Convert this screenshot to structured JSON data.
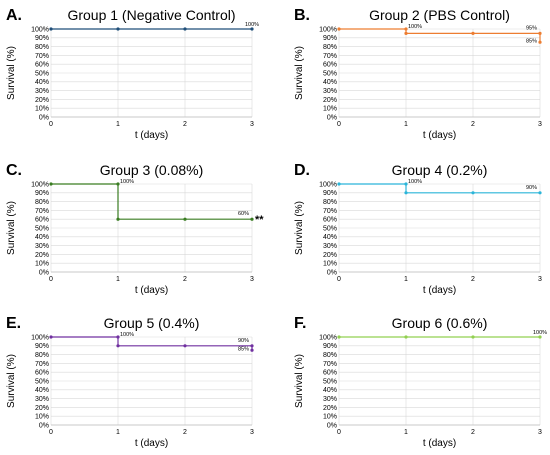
{
  "chart_data": [
    {
      "type": "line",
      "panel": "A.",
      "title": "Group 1 (Negative Control)",
      "xlabel": "t (days)",
      "ylabel": "Survival (%)",
      "xlim": [
        0,
        3
      ],
      "ylim": [
        0,
        100
      ],
      "x_ticks": [
        "0",
        "1",
        "2",
        "3"
      ],
      "y_ticks": [
        "0%",
        "10%",
        "20%",
        "30%",
        "40%",
        "50%",
        "60%",
        "70%",
        "80%",
        "90%",
        "100%"
      ],
      "color": "#1F4E79",
      "grid": true,
      "series": [
        {
          "steps": [
            [
              0,
              100
            ],
            [
              1,
              100
            ],
            [
              2,
              100
            ],
            [
              3,
              100
            ]
          ],
          "points": [
            [
              0,
              100
            ],
            [
              1,
              100
            ],
            [
              2,
              100
            ],
            [
              3,
              100
            ]
          ]
        }
      ],
      "annotations": [
        {
          "text": "100%",
          "x": 3,
          "y": 100,
          "pos": "above"
        }
      ]
    },
    {
      "type": "line",
      "panel": "B.",
      "title": "Group 2 (PBS Control)",
      "xlabel": "t (days)",
      "ylabel": "Survival (%)",
      "xlim": [
        0,
        3
      ],
      "ylim": [
        0,
        100
      ],
      "x_ticks": [
        "0",
        "1",
        "2",
        "3"
      ],
      "y_ticks": [
        "0%",
        "10%",
        "20%",
        "30%",
        "40%",
        "50%",
        "60%",
        "70%",
        "80%",
        "90%",
        "100%"
      ],
      "color": "#ED7D31",
      "grid": true,
      "series": [
        {
          "steps": [
            [
              0,
              100
            ],
            [
              1,
              100
            ],
            [
              1,
              95
            ],
            [
              3,
              95
            ],
            [
              3,
              85
            ]
          ],
          "points": [
            [
              0,
              100
            ],
            [
              1,
              100
            ],
            [
              1,
              95
            ],
            [
              2,
              95
            ],
            [
              3,
              95
            ],
            [
              3,
              85
            ]
          ]
        }
      ],
      "annotations": [
        {
          "text": "100%",
          "x": 1,
          "y": 100,
          "pos": "right"
        },
        {
          "text": "95%",
          "x": 3,
          "y": 95,
          "pos": "left-above"
        },
        {
          "text": "85%",
          "x": 3,
          "y": 85,
          "pos": "left"
        }
      ]
    },
    {
      "type": "line",
      "panel": "C.",
      "title": "Group 3 (0.08%)",
      "xlabel": "t (days)",
      "ylabel": "Survival (%)",
      "xlim": [
        0,
        3
      ],
      "ylim": [
        0,
        100
      ],
      "x_ticks": [
        "0",
        "1",
        "2",
        "3"
      ],
      "y_ticks": [
        "0%",
        "10%",
        "20%",
        "30%",
        "40%",
        "50%",
        "60%",
        "70%",
        "80%",
        "90%",
        "100%"
      ],
      "color": "#3A7D22",
      "grid": true,
      "series": [
        {
          "steps": [
            [
              0,
              100
            ],
            [
              1,
              100
            ],
            [
              1,
              60
            ],
            [
              3,
              60
            ]
          ],
          "points": [
            [
              0,
              100
            ],
            [
              1,
              100
            ],
            [
              1,
              60
            ],
            [
              2,
              60
            ],
            [
              3,
              60
            ]
          ]
        }
      ],
      "annotations": [
        {
          "text": "100%",
          "x": 1,
          "y": 100,
          "pos": "right"
        },
        {
          "text": "60%",
          "x": 3,
          "y": 60,
          "pos": "left-above"
        }
      ],
      "significance": {
        "text": "**",
        "x": 3,
        "y": 60
      }
    },
    {
      "type": "line",
      "panel": "D.",
      "title": "Group 4 (0.2%)",
      "xlabel": "t (days)",
      "ylabel": "Survival (%)",
      "xlim": [
        0,
        3
      ],
      "ylim": [
        0,
        100
      ],
      "x_ticks": [
        "0",
        "1",
        "2",
        "3"
      ],
      "y_ticks": [
        "0%",
        "10%",
        "20%",
        "30%",
        "40%",
        "50%",
        "60%",
        "70%",
        "80%",
        "90%",
        "100%"
      ],
      "color": "#2BB5D9",
      "grid": true,
      "series": [
        {
          "steps": [
            [
              0,
              100
            ],
            [
              1,
              100
            ],
            [
              1,
              90
            ],
            [
              3,
              90
            ]
          ],
          "points": [
            [
              0,
              100
            ],
            [
              1,
              100
            ],
            [
              1,
              90
            ],
            [
              2,
              90
            ],
            [
              3,
              90
            ]
          ]
        }
      ],
      "annotations": [
        {
          "text": "100%",
          "x": 1,
          "y": 100,
          "pos": "right"
        },
        {
          "text": "90%",
          "x": 3,
          "y": 90,
          "pos": "left-above"
        }
      ]
    },
    {
      "type": "line",
      "panel": "E.",
      "title": "Group 5 (0.4%)",
      "xlabel": "t (days)",
      "ylabel": "Survival (%)",
      "xlim": [
        0,
        3
      ],
      "ylim": [
        0,
        100
      ],
      "x_ticks": [
        "0",
        "1",
        "2",
        "3"
      ],
      "y_ticks": [
        "0%",
        "10%",
        "20%",
        "30%",
        "40%",
        "50%",
        "60%",
        "70%",
        "80%",
        "90%",
        "100%"
      ],
      "color": "#7030A0",
      "grid": true,
      "series": [
        {
          "steps": [
            [
              0,
              100
            ],
            [
              1,
              100
            ],
            [
              1,
              90
            ],
            [
              3,
              90
            ],
            [
              3,
              85
            ]
          ],
          "points": [
            [
              0,
              100
            ],
            [
              1,
              100
            ],
            [
              1,
              90
            ],
            [
              2,
              90
            ],
            [
              3,
              90
            ],
            [
              3,
              85
            ]
          ]
        }
      ],
      "annotations": [
        {
          "text": "100%",
          "x": 1,
          "y": 100,
          "pos": "right"
        },
        {
          "text": "90%",
          "x": 3,
          "y": 90,
          "pos": "left-above"
        },
        {
          "text": "85%",
          "x": 3,
          "y": 85,
          "pos": "left"
        }
      ]
    },
    {
      "type": "line",
      "panel": "F.",
      "title": "Group 6 (0.6%)",
      "xlabel": "t (days)",
      "ylabel": "Survival (%)",
      "xlim": [
        0,
        3
      ],
      "ylim": [
        0,
        100
      ],
      "x_ticks": [
        "0",
        "1",
        "2",
        "3"
      ],
      "y_ticks": [
        "0%",
        "10%",
        "20%",
        "30%",
        "40%",
        "50%",
        "60%",
        "70%",
        "80%",
        "90%",
        "100%"
      ],
      "color": "#92D050",
      "grid": true,
      "series": [
        {
          "steps": [
            [
              0,
              100
            ],
            [
              1,
              100
            ],
            [
              2,
              100
            ],
            [
              3,
              100
            ]
          ],
          "points": [
            [
              0,
              100
            ],
            [
              1,
              100
            ],
            [
              2,
              100
            ],
            [
              3,
              100
            ]
          ]
        }
      ],
      "annotations": [
        {
          "text": "100%",
          "x": 3,
          "y": 100,
          "pos": "above"
        }
      ]
    }
  ]
}
